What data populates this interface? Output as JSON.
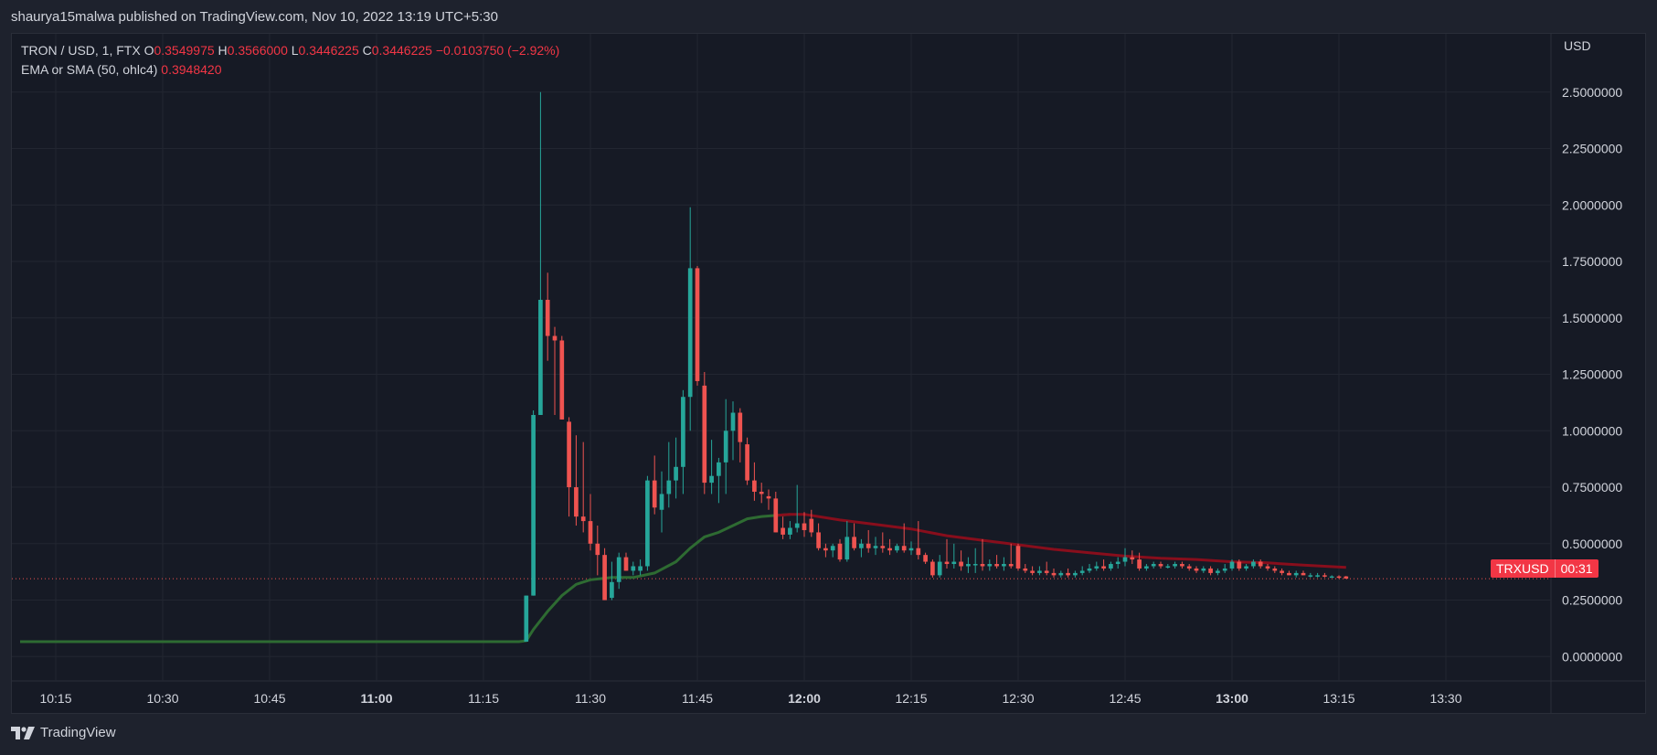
{
  "header": {
    "published": "shaurya15malwa published on TradingView.com, Nov 10, 2022 13:19 UTC+5:30"
  },
  "legend": {
    "symbol": "TRON / USD, 1, FTX",
    "o_label": "O",
    "o_value": "0.3549975",
    "h_label": "H",
    "h_value": "0.3566000",
    "l_label": "L",
    "l_value": "0.3446225",
    "c_label": "C",
    "c_value": "0.3446225",
    "change": "−0.0103750 (−2.92%)",
    "indicator_label": "EMA or SMA (50, ohlc4)",
    "indicator_value": "0.3948420"
  },
  "price_badge": {
    "symbol": "TRXUSD",
    "timer": "00:31",
    "color": "#f23645"
  },
  "footer": {
    "brand": "TradingView",
    "icon": "tradingview-logo-icon"
  },
  "colors": {
    "up": "#26a69a",
    "down": "#ef5350",
    "sma_green": "#1b5e20",
    "sma_red": "#880e1c",
    "grid": "#222631",
    "text": "#d1d4dc"
  },
  "chart_data": {
    "type": "candlestick",
    "title": "TRON / USD, 1, FTX",
    "xlabel": "",
    "ylabel": "",
    "y_unit": "USD",
    "ylim": [
      -0.1,
      2.75
    ],
    "y_ticks": [
      "2.5000000",
      "2.2500000",
      "2.0000000",
      "1.7500000",
      "1.5000000",
      "1.2500000",
      "1.0000000",
      "0.7500000",
      "0.5000000",
      "0.2500000",
      "0.0000000"
    ],
    "y_tick_values": [
      2.5,
      2.25,
      2.0,
      1.75,
      1.5,
      1.25,
      1.0,
      0.75,
      0.5,
      0.25,
      0.0
    ],
    "x_ticks": [
      {
        "label": "10:15",
        "minute": 15,
        "bold": false
      },
      {
        "label": "10:30",
        "minute": 30,
        "bold": false
      },
      {
        "label": "10:45",
        "minute": 45,
        "bold": false
      },
      {
        "label": "11:00",
        "minute": 60,
        "bold": true
      },
      {
        "label": "11:15",
        "minute": 75,
        "bold": false
      },
      {
        "label": "11:30",
        "minute": 90,
        "bold": false
      },
      {
        "label": "11:45",
        "minute": 105,
        "bold": false
      },
      {
        "label": "12:00",
        "minute": 120,
        "bold": true
      },
      {
        "label": "12:15",
        "minute": 135,
        "bold": false
      },
      {
        "label": "12:30",
        "minute": 150,
        "bold": false
      },
      {
        "label": "12:45",
        "minute": 165,
        "bold": false
      },
      {
        "label": "13:00",
        "minute": 180,
        "bold": true
      },
      {
        "label": "13:15",
        "minute": 195,
        "bold": false
      },
      {
        "label": "13:30",
        "minute": 210,
        "bold": false
      }
    ],
    "x_range_minutes": [
      10,
      225
    ],
    "flat_line": {
      "from_minute": 10,
      "to_minute": 80,
      "value": 0.066
    },
    "candles": [
      {
        "m": 81,
        "o": 0.066,
        "h": 0.27,
        "l": 0.066,
        "c": 0.27
      },
      {
        "m": 82,
        "o": 0.27,
        "h": 1.09,
        "l": 0.27,
        "c": 1.07
      },
      {
        "m": 83,
        "o": 1.07,
        "h": 2.5,
        "l": 1.07,
        "c": 1.58
      },
      {
        "m": 84,
        "o": 1.58,
        "h": 1.7,
        "l": 1.31,
        "c": 1.42
      },
      {
        "m": 85,
        "o": 1.42,
        "h": 1.46,
        "l": 1.07,
        "c": 1.4
      },
      {
        "m": 86,
        "o": 1.4,
        "h": 1.42,
        "l": 1.05,
        "c": 1.05
      },
      {
        "m": 87,
        "o": 1.04,
        "h": 1.06,
        "l": 0.62,
        "c": 0.75
      },
      {
        "m": 88,
        "o": 0.75,
        "h": 0.98,
        "l": 0.58,
        "c": 0.62
      },
      {
        "m": 89,
        "o": 0.62,
        "h": 0.95,
        "l": 0.55,
        "c": 0.6
      },
      {
        "m": 90,
        "o": 0.6,
        "h": 0.72,
        "l": 0.47,
        "c": 0.5
      },
      {
        "m": 91,
        "o": 0.5,
        "h": 0.58,
        "l": 0.36,
        "c": 0.45
      },
      {
        "m": 92,
        "o": 0.45,
        "h": 0.48,
        "l": 0.25,
        "c": 0.25
      },
      {
        "m": 93,
        "o": 0.26,
        "h": 0.42,
        "l": 0.25,
        "c": 0.33
      },
      {
        "m": 94,
        "o": 0.33,
        "h": 0.46,
        "l": 0.3,
        "c": 0.44
      },
      {
        "m": 95,
        "o": 0.44,
        "h": 0.46,
        "l": 0.38,
        "c": 0.38
      },
      {
        "m": 96,
        "o": 0.38,
        "h": 0.42,
        "l": 0.36,
        "c": 0.4
      },
      {
        "m": 97,
        "o": 0.38,
        "h": 0.43,
        "l": 0.36,
        "c": 0.4
      },
      {
        "m": 98,
        "o": 0.4,
        "h": 0.8,
        "l": 0.38,
        "c": 0.78
      },
      {
        "m": 99,
        "o": 0.78,
        "h": 0.89,
        "l": 0.63,
        "c": 0.66
      },
      {
        "m": 100,
        "o": 0.65,
        "h": 0.82,
        "l": 0.55,
        "c": 0.72
      },
      {
        "m": 101,
        "o": 0.72,
        "h": 0.95,
        "l": 0.66,
        "c": 0.78
      },
      {
        "m": 102,
        "o": 0.78,
        "h": 0.97,
        "l": 0.7,
        "c": 0.84
      },
      {
        "m": 103,
        "o": 0.84,
        "h": 1.18,
        "l": 0.72,
        "c": 1.15
      },
      {
        "m": 104,
        "o": 1.15,
        "h": 1.99,
        "l": 1.0,
        "c": 1.72
      },
      {
        "m": 105,
        "o": 1.72,
        "h": 1.73,
        "l": 1.2,
        "c": 1.22
      },
      {
        "m": 106,
        "o": 1.2,
        "h": 1.26,
        "l": 0.72,
        "c": 0.77
      },
      {
        "m": 107,
        "o": 0.77,
        "h": 0.96,
        "l": 0.72,
        "c": 0.8
      },
      {
        "m": 108,
        "o": 0.8,
        "h": 0.88,
        "l": 0.68,
        "c": 0.86
      },
      {
        "m": 109,
        "o": 0.86,
        "h": 1.14,
        "l": 0.72,
        "c": 1.0
      },
      {
        "m": 110,
        "o": 1.0,
        "h": 1.13,
        "l": 0.87,
        "c": 1.08
      },
      {
        "m": 111,
        "o": 1.08,
        "h": 1.1,
        "l": 0.86,
        "c": 0.95
      },
      {
        "m": 112,
        "o": 0.94,
        "h": 0.97,
        "l": 0.76,
        "c": 0.78
      },
      {
        "m": 113,
        "o": 0.78,
        "h": 0.86,
        "l": 0.69,
        "c": 0.73
      },
      {
        "m": 114,
        "o": 0.73,
        "h": 0.77,
        "l": 0.68,
        "c": 0.72
      },
      {
        "m": 115,
        "o": 0.71,
        "h": 0.74,
        "l": 0.65,
        "c": 0.7
      },
      {
        "m": 116,
        "o": 0.7,
        "h": 0.73,
        "l": 0.55,
        "c": 0.55
      },
      {
        "m": 117,
        "o": 0.57,
        "h": 0.62,
        "l": 0.52,
        "c": 0.54
      },
      {
        "m": 118,
        "o": 0.54,
        "h": 0.6,
        "l": 0.52,
        "c": 0.57
      },
      {
        "m": 119,
        "o": 0.57,
        "h": 0.76,
        "l": 0.55,
        "c": 0.59
      },
      {
        "m": 120,
        "o": 0.59,
        "h": 0.64,
        "l": 0.53,
        "c": 0.56
      },
      {
        "m": 121,
        "o": 0.61,
        "h": 0.65,
        "l": 0.53,
        "c": 0.55
      },
      {
        "m": 122,
        "o": 0.55,
        "h": 0.59,
        "l": 0.47,
        "c": 0.48
      },
      {
        "m": 123,
        "o": 0.48,
        "h": 0.5,
        "l": 0.44,
        "c": 0.47
      },
      {
        "m": 124,
        "o": 0.47,
        "h": 0.5,
        "l": 0.44,
        "c": 0.49
      },
      {
        "m": 125,
        "o": 0.5,
        "h": 0.52,
        "l": 0.42,
        "c": 0.43
      },
      {
        "m": 126,
        "o": 0.43,
        "h": 0.6,
        "l": 0.42,
        "c": 0.53
      },
      {
        "m": 127,
        "o": 0.53,
        "h": 0.59,
        "l": 0.47,
        "c": 0.48
      },
      {
        "m": 128,
        "o": 0.48,
        "h": 0.52,
        "l": 0.44,
        "c": 0.5
      },
      {
        "m": 129,
        "o": 0.5,
        "h": 0.56,
        "l": 0.46,
        "c": 0.48
      },
      {
        "m": 130,
        "o": 0.48,
        "h": 0.53,
        "l": 0.45,
        "c": 0.49
      },
      {
        "m": 131,
        "o": 0.49,
        "h": 0.55,
        "l": 0.46,
        "c": 0.48
      },
      {
        "m": 132,
        "o": 0.48,
        "h": 0.52,
        "l": 0.45,
        "c": 0.47
      },
      {
        "m": 133,
        "o": 0.47,
        "h": 0.5,
        "l": 0.46,
        "c": 0.49
      },
      {
        "m": 134,
        "o": 0.49,
        "h": 0.59,
        "l": 0.46,
        "c": 0.47
      },
      {
        "m": 135,
        "o": 0.47,
        "h": 0.51,
        "l": 0.45,
        "c": 0.48
      },
      {
        "m": 136,
        "o": 0.48,
        "h": 0.6,
        "l": 0.43,
        "c": 0.45
      },
      {
        "m": 137,
        "o": 0.45,
        "h": 0.46,
        "l": 0.41,
        "c": 0.42
      },
      {
        "m": 138,
        "o": 0.42,
        "h": 0.43,
        "l": 0.35,
        "c": 0.36
      },
      {
        "m": 139,
        "o": 0.36,
        "h": 0.45,
        "l": 0.35,
        "c": 0.42
      },
      {
        "m": 140,
        "o": 0.42,
        "h": 0.52,
        "l": 0.39,
        "c": 0.41
      },
      {
        "m": 141,
        "o": 0.41,
        "h": 0.5,
        "l": 0.39,
        "c": 0.42
      },
      {
        "m": 142,
        "o": 0.42,
        "h": 0.47,
        "l": 0.38,
        "c": 0.4
      },
      {
        "m": 143,
        "o": 0.4,
        "h": 0.44,
        "l": 0.37,
        "c": 0.41
      },
      {
        "m": 144,
        "o": 0.41,
        "h": 0.48,
        "l": 0.37,
        "c": 0.41
      },
      {
        "m": 145,
        "o": 0.41,
        "h": 0.52,
        "l": 0.38,
        "c": 0.4
      },
      {
        "m": 146,
        "o": 0.4,
        "h": 0.43,
        "l": 0.38,
        "c": 0.41
      },
      {
        "m": 147,
        "o": 0.41,
        "h": 0.45,
        "l": 0.39,
        "c": 0.4
      },
      {
        "m": 148,
        "o": 0.4,
        "h": 0.44,
        "l": 0.38,
        "c": 0.41
      },
      {
        "m": 149,
        "o": 0.41,
        "h": 0.5,
        "l": 0.39,
        "c": 0.4
      },
      {
        "m": 150,
        "o": 0.49,
        "h": 0.5,
        "l": 0.38,
        "c": 0.39
      },
      {
        "m": 151,
        "o": 0.39,
        "h": 0.41,
        "l": 0.37,
        "c": 0.38
      },
      {
        "m": 152,
        "o": 0.38,
        "h": 0.4,
        "l": 0.36,
        "c": 0.37
      },
      {
        "m": 153,
        "o": 0.37,
        "h": 0.4,
        "l": 0.36,
        "c": 0.38
      },
      {
        "m": 154,
        "o": 0.38,
        "h": 0.42,
        "l": 0.36,
        "c": 0.37
      },
      {
        "m": 155,
        "o": 0.37,
        "h": 0.39,
        "l": 0.35,
        "c": 0.36
      },
      {
        "m": 156,
        "o": 0.36,
        "h": 0.38,
        "l": 0.35,
        "c": 0.37
      },
      {
        "m": 157,
        "o": 0.37,
        "h": 0.39,
        "l": 0.35,
        "c": 0.36
      },
      {
        "m": 158,
        "o": 0.36,
        "h": 0.38,
        "l": 0.35,
        "c": 0.37
      },
      {
        "m": 159,
        "o": 0.37,
        "h": 0.4,
        "l": 0.36,
        "c": 0.38
      },
      {
        "m": 160,
        "o": 0.38,
        "h": 0.41,
        "l": 0.37,
        "c": 0.39
      },
      {
        "m": 161,
        "o": 0.39,
        "h": 0.42,
        "l": 0.38,
        "c": 0.4
      },
      {
        "m": 162,
        "o": 0.4,
        "h": 0.43,
        "l": 0.38,
        "c": 0.39
      },
      {
        "m": 163,
        "o": 0.39,
        "h": 0.42,
        "l": 0.38,
        "c": 0.41
      },
      {
        "m": 164,
        "o": 0.41,
        "h": 0.44,
        "l": 0.39,
        "c": 0.42
      },
      {
        "m": 165,
        "o": 0.42,
        "h": 0.48,
        "l": 0.4,
        "c": 0.44
      },
      {
        "m": 166,
        "o": 0.44,
        "h": 0.47,
        "l": 0.41,
        "c": 0.43
      },
      {
        "m": 167,
        "o": 0.43,
        "h": 0.46,
        "l": 0.38,
        "c": 0.39
      },
      {
        "m": 168,
        "o": 0.39,
        "h": 0.41,
        "l": 0.38,
        "c": 0.4
      },
      {
        "m": 169,
        "o": 0.4,
        "h": 0.42,
        "l": 0.39,
        "c": 0.41
      },
      {
        "m": 170,
        "o": 0.41,
        "h": 0.42,
        "l": 0.39,
        "c": 0.4
      },
      {
        "m": 171,
        "o": 0.4,
        "h": 0.41,
        "l": 0.39,
        "c": 0.4
      },
      {
        "m": 172,
        "o": 0.4,
        "h": 0.42,
        "l": 0.39,
        "c": 0.41
      },
      {
        "m": 173,
        "o": 0.41,
        "h": 0.42,
        "l": 0.39,
        "c": 0.4
      },
      {
        "m": 174,
        "o": 0.4,
        "h": 0.41,
        "l": 0.38,
        "c": 0.39
      },
      {
        "m": 175,
        "o": 0.39,
        "h": 0.4,
        "l": 0.37,
        "c": 0.38
      },
      {
        "m": 176,
        "o": 0.38,
        "h": 0.4,
        "l": 0.37,
        "c": 0.39
      },
      {
        "m": 177,
        "o": 0.39,
        "h": 0.4,
        "l": 0.36,
        "c": 0.37
      },
      {
        "m": 178,
        "o": 0.37,
        "h": 0.39,
        "l": 0.36,
        "c": 0.38
      },
      {
        "m": 179,
        "o": 0.38,
        "h": 0.41,
        "l": 0.37,
        "c": 0.39
      },
      {
        "m": 180,
        "o": 0.39,
        "h": 0.43,
        "l": 0.38,
        "c": 0.42
      },
      {
        "m": 181,
        "o": 0.42,
        "h": 0.43,
        "l": 0.38,
        "c": 0.39
      },
      {
        "m": 182,
        "o": 0.39,
        "h": 0.41,
        "l": 0.38,
        "c": 0.4
      },
      {
        "m": 183,
        "o": 0.4,
        "h": 0.43,
        "l": 0.39,
        "c": 0.42
      },
      {
        "m": 184,
        "o": 0.42,
        "h": 0.43,
        "l": 0.39,
        "c": 0.4
      },
      {
        "m": 185,
        "o": 0.4,
        "h": 0.41,
        "l": 0.38,
        "c": 0.39
      },
      {
        "m": 186,
        "o": 0.39,
        "h": 0.4,
        "l": 0.37,
        "c": 0.38
      },
      {
        "m": 187,
        "o": 0.38,
        "h": 0.39,
        "l": 0.36,
        "c": 0.37
      },
      {
        "m": 188,
        "o": 0.37,
        "h": 0.38,
        "l": 0.36,
        "c": 0.36
      },
      {
        "m": 189,
        "o": 0.36,
        "h": 0.38,
        "l": 0.35,
        "c": 0.37
      },
      {
        "m": 190,
        "o": 0.37,
        "h": 0.38,
        "l": 0.36,
        "c": 0.36
      },
      {
        "m": 191,
        "o": 0.36,
        "h": 0.37,
        "l": 0.35,
        "c": 0.36
      },
      {
        "m": 192,
        "o": 0.36,
        "h": 0.37,
        "l": 0.35,
        "c": 0.36
      },
      {
        "m": 193,
        "o": 0.36,
        "h": 0.37,
        "l": 0.35,
        "c": 0.355
      },
      {
        "m": 194,
        "o": 0.355,
        "h": 0.36,
        "l": 0.35,
        "c": 0.355
      },
      {
        "m": 195,
        "o": 0.355,
        "h": 0.36,
        "l": 0.345,
        "c": 0.35
      },
      {
        "m": 196,
        "o": 0.355,
        "h": 0.357,
        "l": 0.345,
        "c": 0.345
      }
    ],
    "sma": [
      {
        "m": 10,
        "v": 0.066
      },
      {
        "m": 80,
        "v": 0.066
      },
      {
        "m": 81,
        "v": 0.07
      },
      {
        "m": 82,
        "v": 0.12
      },
      {
        "m": 84,
        "v": 0.2
      },
      {
        "m": 86,
        "v": 0.27
      },
      {
        "m": 88,
        "v": 0.32
      },
      {
        "m": 90,
        "v": 0.34
      },
      {
        "m": 93,
        "v": 0.35
      },
      {
        "m": 96,
        "v": 0.35
      },
      {
        "m": 99,
        "v": 0.37
      },
      {
        "m": 102,
        "v": 0.42
      },
      {
        "m": 104,
        "v": 0.48
      },
      {
        "m": 106,
        "v": 0.53
      },
      {
        "m": 108,
        "v": 0.55
      },
      {
        "m": 110,
        "v": 0.58
      },
      {
        "m": 112,
        "v": 0.61
      },
      {
        "m": 114,
        "v": 0.62
      },
      {
        "m": 116,
        "v": 0.625
      },
      {
        "m": 118,
        "v": 0.63
      },
      {
        "m": 120,
        "v": 0.63
      },
      {
        "m": 125,
        "v": 0.605
      },
      {
        "m": 130,
        "v": 0.585
      },
      {
        "m": 135,
        "v": 0.565
      },
      {
        "m": 140,
        "v": 0.535
      },
      {
        "m": 145,
        "v": 0.515
      },
      {
        "m": 150,
        "v": 0.495
      },
      {
        "m": 155,
        "v": 0.475
      },
      {
        "m": 160,
        "v": 0.46
      },
      {
        "m": 165,
        "v": 0.445
      },
      {
        "m": 170,
        "v": 0.435
      },
      {
        "m": 175,
        "v": 0.43
      },
      {
        "m": 180,
        "v": 0.42
      },
      {
        "m": 185,
        "v": 0.415
      },
      {
        "m": 190,
        "v": 0.405
      },
      {
        "m": 196,
        "v": 0.395
      }
    ],
    "sma_turn_minute": 117,
    "last_price": 0.3446225
  }
}
